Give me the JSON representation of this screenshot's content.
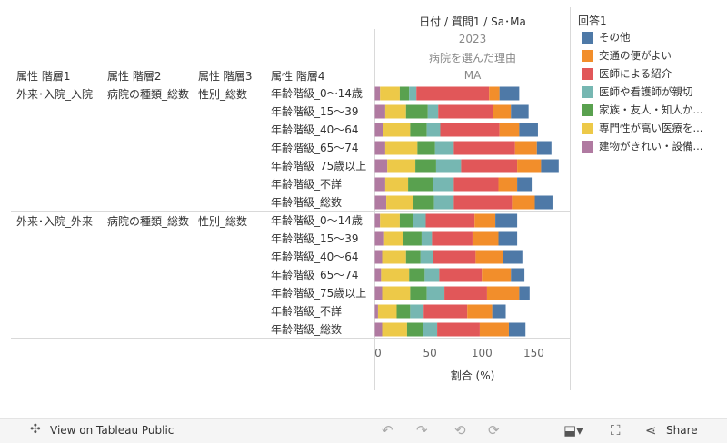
{
  "header": {
    "column_title": "日付 / 質問1 / Sa･Ma",
    "year": "2023",
    "question": "病院を選んだ理由",
    "sub": "MA",
    "attr1": "属性 階層1",
    "attr2": "属性 階層2",
    "attr3": "属性 階層3",
    "attr4": "属性 階層4"
  },
  "groups": [
    {
      "attr1": "外来･入院_入院",
      "attr2": "病院の種類_総数",
      "attr3": "性別_総数"
    },
    {
      "attr1": "外来･入院_外来",
      "attr2": "病院の種類_総数",
      "attr3": "性別_総数"
    }
  ],
  "legend": {
    "title": "回答1",
    "items": [
      {
        "label": "その他",
        "color": "#4e79a7"
      },
      {
        "label": "交通の便がよい",
        "color": "#f28e2b"
      },
      {
        "label": "医師による紹介",
        "color": "#e15759"
      },
      {
        "label": "医師や看護師が親切",
        "color": "#76b7b2"
      },
      {
        "label": "家族・友人・知人か...",
        "color": "#59a14f"
      },
      {
        "label": "専門性が高い医療を...",
        "color": "#edc948"
      },
      {
        "label": "建物がきれい・設備...",
        "color": "#b07aa1"
      }
    ]
  },
  "chart_data": {
    "type": "bar",
    "orientation": "horizontal",
    "stacked": true,
    "xlabel": "割合 (%)",
    "xlim": [
      -4,
      185
    ],
    "xticks": [
      0,
      50,
      100,
      150
    ],
    "stack_order": [
      "建物がきれい・設備...",
      "専門性が高い医療を...",
      "家族・友人・知人か...",
      "医師や看護師が親切",
      "医師による紹介",
      "交通の便がよい",
      "その他"
    ],
    "categories": [
      "年齢階級_0～14歳",
      "年齢階級_15～39",
      "年齢階級_40～64",
      "年齢階級_65～74",
      "年齢階級_75歳以上",
      "年齢階級_不詳",
      "年齢階級_総数",
      "年齢階級_0～14歳",
      "年齢階級_15～39",
      "年齢階級_40～64",
      "年齢階級_65～74",
      "年齢階級_75歳以上",
      "年齢階級_不詳",
      "年齢階級_総数"
    ],
    "group_of_row": [
      0,
      0,
      0,
      0,
      0,
      0,
      0,
      1,
      1,
      1,
      1,
      1,
      1,
      1
    ],
    "series": [
      {
        "name": "建物がきれい・設備...",
        "values": [
          5,
          10,
          8,
          10,
          12,
          10,
          11,
          5,
          9,
          7,
          6,
          7,
          3,
          7
        ]
      },
      {
        "name": "専門性が高い医療を...",
        "values": [
          19,
          20,
          26,
          31,
          27,
          22,
          26,
          19,
          18,
          23,
          27,
          27,
          18,
          24
        ]
      },
      {
        "name": "家族・友人・知人か...",
        "values": [
          9,
          21,
          16,
          17,
          20,
          24,
          20,
          13,
          18,
          14,
          15,
          16,
          13,
          15
        ]
      },
      {
        "name": "医師や看護師が親切",
        "values": [
          7,
          10,
          13,
          18,
          24,
          20,
          19,
          12,
          10,
          12,
          14,
          17,
          13,
          14
        ]
      },
      {
        "name": "医師による紹介",
        "values": [
          70,
          53,
          57,
          59,
          54,
          43,
          56,
          47,
          39,
          41,
          41,
          41,
          42,
          41
        ]
      },
      {
        "name": "交通の便がよい",
        "values": [
          10,
          17,
          19,
          21,
          23,
          18,
          22,
          20,
          25,
          26,
          28,
          31,
          24,
          28
        ]
      },
      {
        "name": "その他",
        "values": [
          19,
          17,
          18,
          14,
          17,
          14,
          17,
          21,
          18,
          19,
          13,
          10,
          13,
          16
        ]
      }
    ]
  },
  "toolbar": {
    "view_label": "View on Tableau Public",
    "share_label": "Share"
  }
}
